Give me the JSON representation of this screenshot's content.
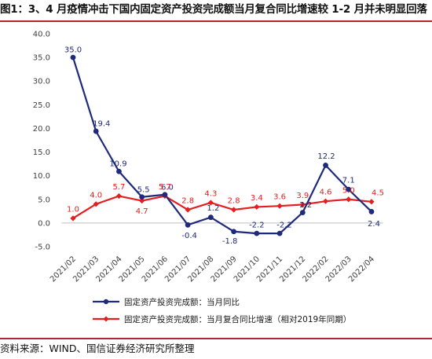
{
  "title": "图1：3、4 月疫情冲击下国内固定资产投资完成额当月复合同比增速较 1-2 月并未明显回落",
  "source": "资料来源：WIND、国信证券经济研究所整理",
  "chart_data": {
    "type": "line",
    "categories": [
      "2021/02",
      "2021/03",
      "2021/04",
      "2021/05",
      "2021/06",
      "2021/07",
      "2021/08",
      "2021/09",
      "2021/10",
      "2021/11",
      "2021/12",
      "2022/02",
      "2022/03",
      "2022/04"
    ],
    "ylim": [
      -5,
      40
    ],
    "yticks": [
      "-5.0",
      "0.0",
      "5.0",
      "10.0",
      "15.0",
      "20.0",
      "25.0",
      "30.0",
      "35.0",
      "40.0"
    ],
    "grid": false,
    "legend_position": "bottom",
    "series": [
      {
        "name": "固定资产投资完成额：当月同比",
        "color": "#1f2a7a",
        "marker": "circle",
        "values": [
          35.0,
          19.4,
          10.9,
          5.5,
          6.0,
          -0.4,
          1.2,
          -1.8,
          -2.2,
          -2.2,
          2.2,
          12.2,
          7.1,
          2.4
        ],
        "labels": [
          "35.0",
          "19.4",
          "10.9",
          "5.5",
          "6.0",
          "-0.4",
          "1.2",
          "-1.8",
          "-2.2",
          "-2.2",
          "2.2",
          "12.2",
          "7.1",
          "2.4"
        ]
      },
      {
        "name": "固定资产投资完成额：当月复合同比增速（相对2019年同期）",
        "color": "#e51e1e",
        "marker": "diamond",
        "values": [
          1.0,
          4.0,
          5.7,
          4.7,
          5.7,
          2.8,
          4.3,
          2.8,
          3.4,
          3.6,
          3.9,
          4.6,
          5.0,
          4.5
        ],
        "labels": [
          "1.0",
          "4.0",
          "5.7",
          "4.7",
          "5.7",
          "2.8",
          "4.3",
          "2.8",
          "3.4",
          "3.6",
          "3.9",
          "4.6",
          "5.0",
          "4.5"
        ]
      }
    ]
  }
}
